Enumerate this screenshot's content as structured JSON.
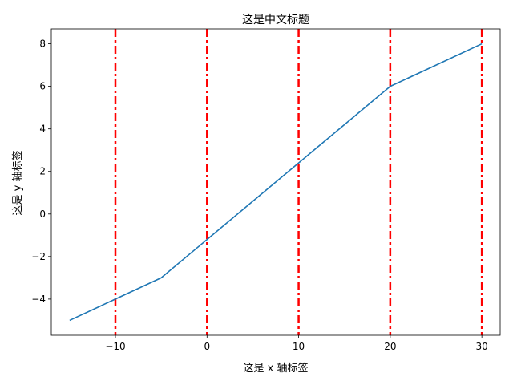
{
  "chart_data": {
    "type": "line",
    "title": "这是中文标题",
    "xlabel": "这是 x 轴标签",
    "ylabel": "这是 y 轴标签",
    "xlim": [
      -17,
      32
    ],
    "ylim": [
      -5.7,
      8.7
    ],
    "xticks": [
      -10,
      0,
      10,
      20,
      30
    ],
    "xtick_labels": [
      "−10",
      "0",
      "10",
      "20",
      "30"
    ],
    "yticks": [
      -4,
      -2,
      0,
      2,
      4,
      6,
      8
    ],
    "ytick_labels": [
      "−4",
      "−2",
      "0",
      "2",
      "4",
      "6",
      "8"
    ],
    "grid": false,
    "series": [
      {
        "x": [
          -15,
          -10,
          -5,
          0,
          5,
          10,
          15,
          20,
          25,
          30
        ],
        "y": [
          -5,
          -4,
          -3,
          -1.2,
          0.6,
          2.4,
          4.2,
          6,
          7,
          8
        ],
        "color": "#1f77b4"
      }
    ],
    "vlines": {
      "x": [
        -10,
        0,
        10,
        20,
        30
      ],
      "color": "#ff0000",
      "style": "dash-dot"
    }
  }
}
